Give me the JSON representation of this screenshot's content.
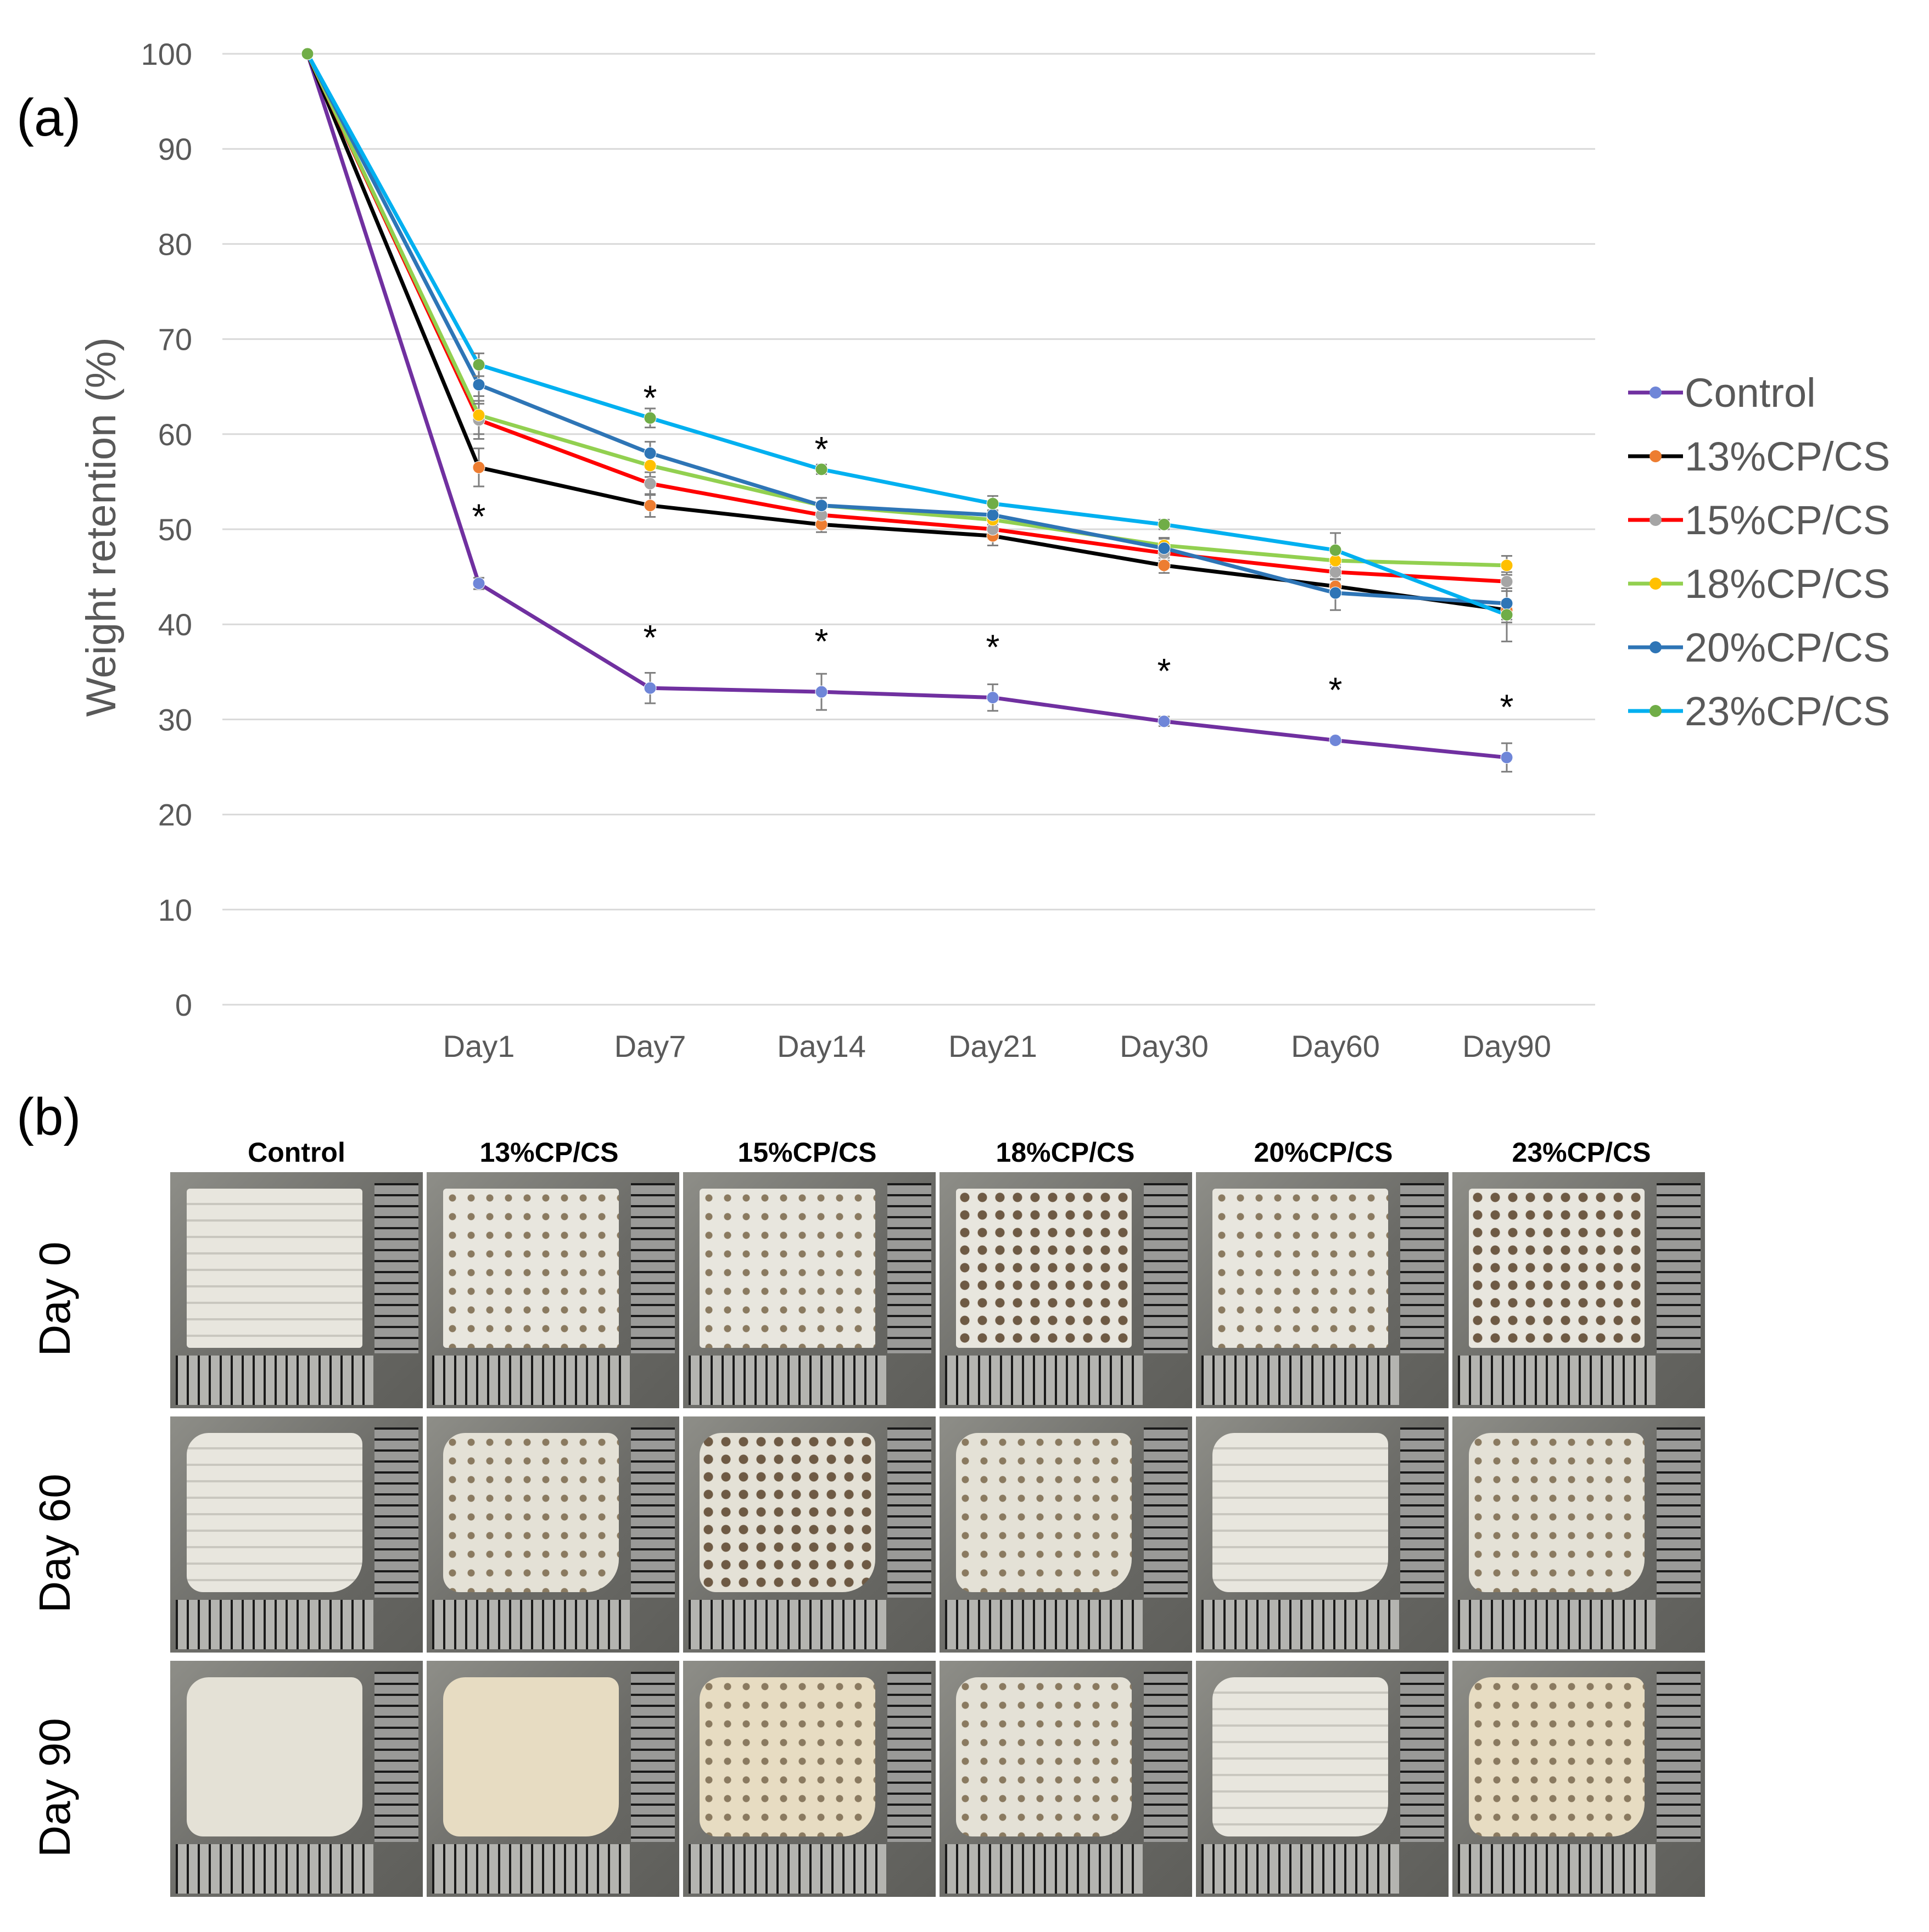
{
  "panels": {
    "a": "(a)",
    "b": "(b)"
  },
  "chart_data": {
    "type": "line",
    "x": [
      "",
      "Day1",
      "Day7",
      "Day14",
      "Day21",
      "Day30",
      "Day60",
      "Day90"
    ],
    "ylabel": "Weight retention (%)",
    "xlabel": "",
    "ylim": [
      0,
      100
    ],
    "yticks": [
      0,
      10,
      20,
      30,
      40,
      50,
      60,
      70,
      80,
      90,
      100
    ],
    "grid": true,
    "legend": "right",
    "series": [
      {
        "name": "Control",
        "color": "#7030a0",
        "marker": "#6f86d8",
        "values": [
          100,
          44.3,
          33.3,
          32.9,
          32.3,
          29.8,
          27.8,
          26.0
        ],
        "err": [
          0,
          0.6,
          1.6,
          1.9,
          1.4,
          0.5,
          0.3,
          1.5
        ]
      },
      {
        "name": "13%CP/CS",
        "color": "#000000",
        "marker": "#ed7d31",
        "values": [
          100,
          56.5,
          52.5,
          50.5,
          49.3,
          46.2,
          44.0,
          41.5
        ],
        "err": [
          0,
          2.0,
          1.2,
          0.8,
          1.0,
          0.8,
          0.8,
          1.0
        ]
      },
      {
        "name": "15%CP/CS",
        "color": "#ff0000",
        "marker": "#a5a5a5",
        "values": [
          100,
          61.5,
          54.8,
          51.5,
          50.0,
          47.5,
          45.5,
          44.5
        ],
        "err": [
          0,
          2.0,
          1.2,
          0.8,
          1.0,
          0.8,
          0.8,
          1.0
        ]
      },
      {
        "name": "18%CP/CS",
        "color": "#92d050",
        "marker": "#ffc000",
        "values": [
          100,
          62.0,
          56.7,
          52.5,
          51.0,
          48.3,
          46.7,
          46.2
        ],
        "err": [
          0,
          2.0,
          1.2,
          0.8,
          1.0,
          0.8,
          0.8,
          1.0
        ]
      },
      {
        "name": "20%CP/CS",
        "color": "#2e75b6",
        "marker": "#2e75b6",
        "values": [
          100,
          65.2,
          58.0,
          52.5,
          51.5,
          48.0,
          43.3,
          42.2
        ],
        "err": [
          0,
          2.0,
          1.2,
          0.8,
          1.0,
          1.0,
          1.8,
          2.0
        ]
      },
      {
        "name": "23%CP/CS",
        "color": "#00b0f0",
        "marker": "#70ad47",
        "values": [
          100,
          67.3,
          61.7,
          56.3,
          52.7,
          50.5,
          47.8,
          41.0
        ],
        "err": [
          0,
          1.2,
          1.0,
          0.5,
          0.8,
          0.5,
          1.8,
          2.8
        ]
      }
    ],
    "asterisks_upper": [
      {
        "x": "Day7",
        "value": 61.7,
        "label": "*"
      },
      {
        "x": "Day14",
        "value": 56.3,
        "label": "*"
      }
    ],
    "asterisks_control": [
      {
        "x": "Day1",
        "value": 44.3,
        "label": "*"
      },
      {
        "x": "Day7",
        "value": 33.3,
        "label": "*"
      },
      {
        "x": "Day14",
        "value": 32.9,
        "label": "*"
      },
      {
        "x": "Day21",
        "value": 32.3,
        "label": "*"
      },
      {
        "x": "Day30",
        "value": 29.8,
        "label": "*"
      },
      {
        "x": "Day60",
        "value": 27.8,
        "label": "*"
      },
      {
        "x": "Day90",
        "value": 26.0,
        "label": "*"
      }
    ]
  },
  "photos": {
    "columns": [
      "Control",
      "13%CP/CS",
      "15%CP/CS",
      "18%CP/CS",
      "20%CP/CS",
      "23%CP/CS"
    ],
    "rows": [
      "Day 0",
      "Day 60",
      "Day 90"
    ]
  }
}
